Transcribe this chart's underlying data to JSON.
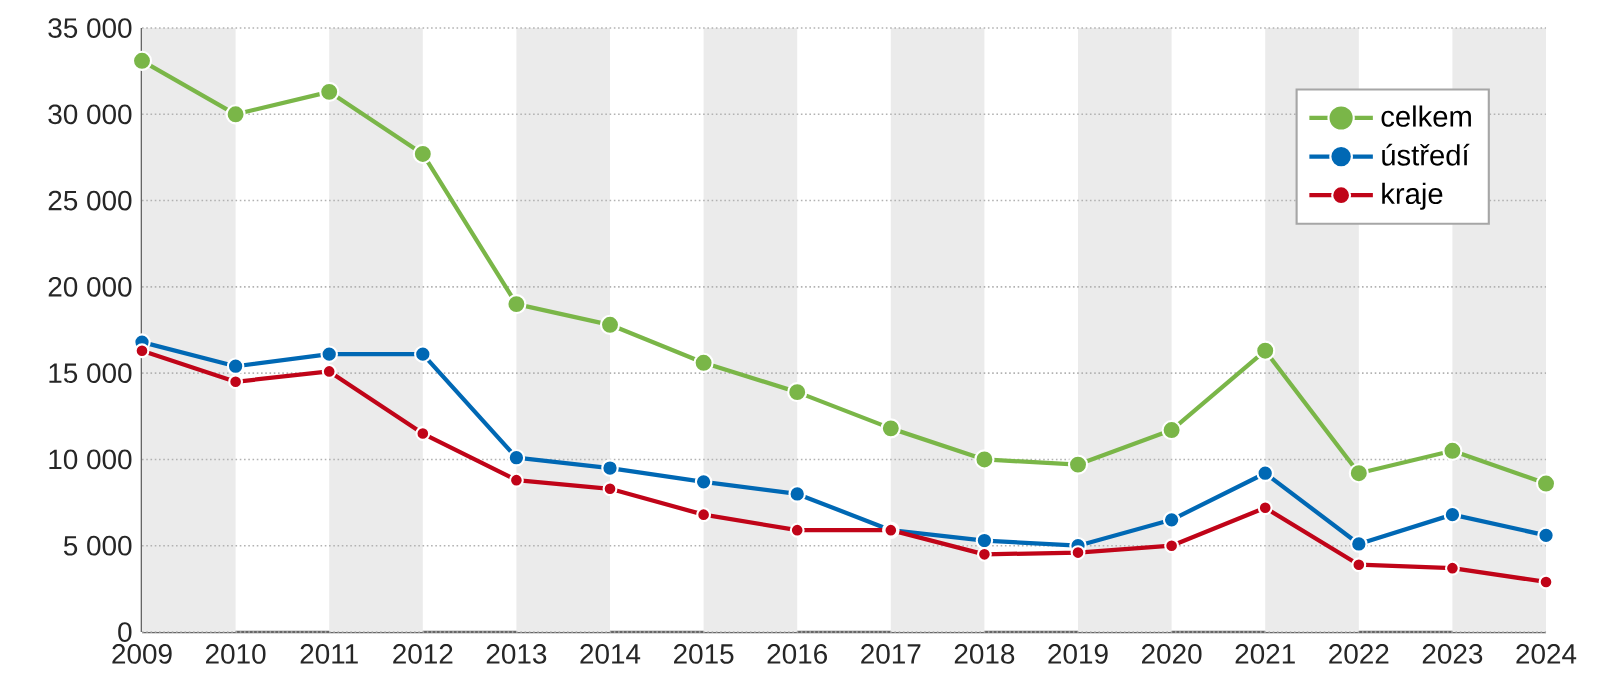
{
  "chart_data": {
    "type": "line",
    "x": [
      2009,
      2010,
      2011,
      2012,
      2013,
      2014,
      2015,
      2016,
      2017,
      2018,
      2019,
      2020,
      2021,
      2022,
      2023,
      2024
    ],
    "series": [
      {
        "name": "celkem",
        "color": "#7ab648",
        "values": [
          33100,
          30000,
          31300,
          27700,
          19000,
          17800,
          15600,
          13900,
          11800,
          10000,
          9700,
          11700,
          16300,
          9200,
          10500,
          8600
        ]
      },
      {
        "name": "ústředí",
        "color": "#0068b4",
        "values": [
          16800,
          15400,
          16100,
          16100,
          10100,
          9500,
          8700,
          8000,
          5900,
          5300,
          5000,
          6500,
          9200,
          5100,
          6800,
          5600
        ]
      },
      {
        "name": "kraje",
        "color": "#c00418",
        "values": [
          16300,
          14500,
          15100,
          11500,
          8800,
          8300,
          6800,
          5900,
          5900,
          4500,
          4600,
          5000,
          7200,
          3900,
          3700,
          2900
        ]
      }
    ],
    "xlim": [
      2009,
      2024
    ],
    "xticks": [
      2009,
      2010,
      2011,
      2012,
      2013,
      2014,
      2015,
      2016,
      2017,
      2018,
      2019,
      2020,
      2021,
      2022,
      2023,
      2024
    ],
    "ylim": [
      0,
      35000
    ],
    "yticks": [
      0,
      {
        "value": 5000,
        "label": "5 000"
      },
      {
        "value": 10000,
        "label": "10 000"
      },
      {
        "value": 15000,
        "label": "15 000"
      },
      {
        "value": 20000,
        "label": "20 000"
      },
      {
        "value": 25000,
        "label": "25 000"
      },
      {
        "value": 30000,
        "label": "30 000"
      },
      {
        "value": 35000,
        "label": "35 000"
      }
    ],
    "bands": [
      {
        "axis": "x",
        "from": 2009,
        "to": 2010,
        "color": "#ebebeb"
      },
      {
        "axis": "x",
        "from": 2011,
        "to": 2012,
        "color": "#ebebeb"
      },
      {
        "axis": "x",
        "from": 2013,
        "to": 2014,
        "color": "#ebebeb"
      },
      {
        "axis": "x",
        "from": 2015,
        "to": 2016,
        "color": "#ebebeb"
      },
      {
        "axis": "x",
        "from": 2017,
        "to": 2018,
        "color": "#ebebeb"
      },
      {
        "axis": "x",
        "from": 2019,
        "to": 2020,
        "color": "#ebebeb"
      },
      {
        "axis": "x",
        "from": 2021,
        "to": 2022,
        "color": "#ebebeb"
      },
      {
        "axis": "x",
        "from": 2023,
        "to": 2024,
        "color": "#ebebeb"
      }
    ],
    "grid": "y",
    "legend": "top right",
    "marker": "circle",
    "line_style": "solid"
  }
}
